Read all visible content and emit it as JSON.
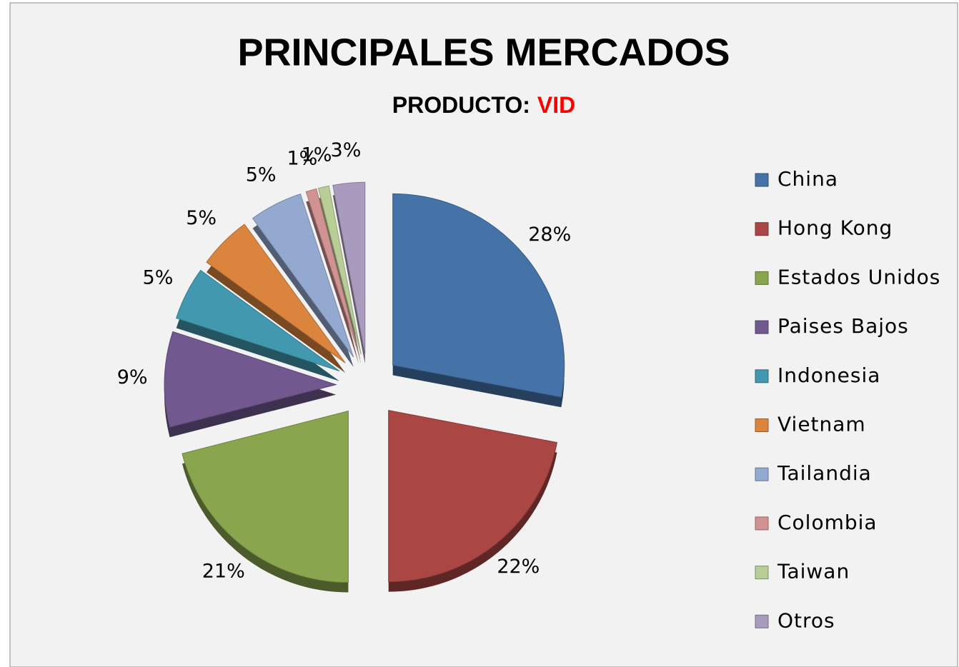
{
  "chart_data": {
    "type": "pie",
    "title": "PRINCIPALES MERCADOS",
    "subtitle": "PRODUCTO:",
    "subtitle_highlight": "VID",
    "categories": [
      "China",
      "Hong Kong",
      "Estados Unidos",
      "Paises Bajos",
      "Indonesia",
      "Vietnam",
      "Tailandia",
      "Colombia",
      "Taiwan",
      "Otros"
    ],
    "values": [
      28,
      22,
      21,
      9,
      5,
      5,
      5,
      1,
      1,
      3
    ],
    "value_labels": [
      "28%",
      "22%",
      "21%",
      "9%",
      "5%",
      "5%",
      "5%",
      "1%",
      "1%",
      "3%"
    ],
    "colors": [
      "#4572a7",
      "#aa4643",
      "#89a54e",
      "#71588f",
      "#4198af",
      "#db843d",
      "#93a9cf",
      "#d19392",
      "#b9cd96",
      "#a99bbd"
    ],
    "legend": "right"
  }
}
